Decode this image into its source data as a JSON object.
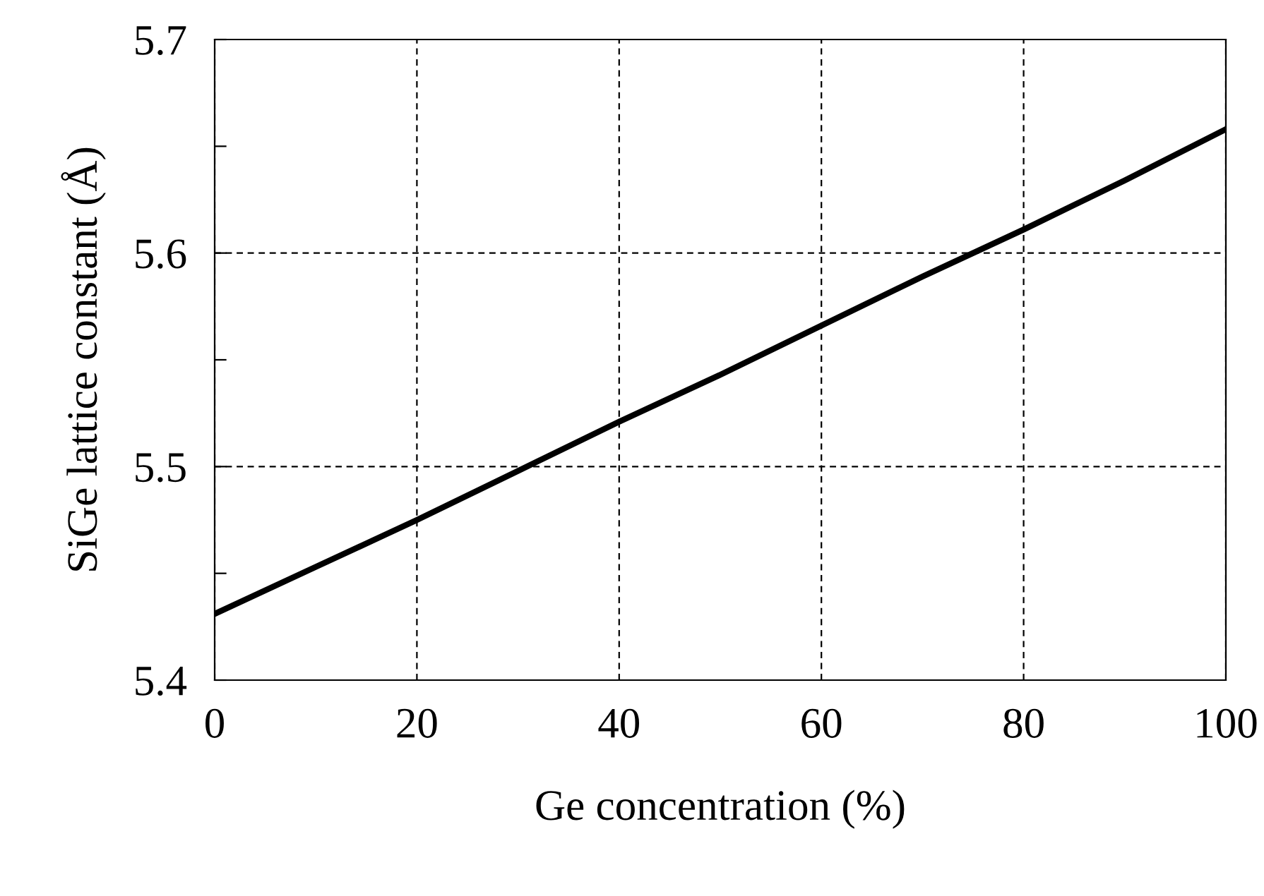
{
  "chart_data": {
    "type": "line",
    "xlabel": "Ge concentration (%)",
    "ylabel": "SiGe lattice constant (Å)",
    "x": [
      0,
      10,
      20,
      30,
      40,
      50,
      60,
      70,
      80,
      90,
      100
    ],
    "series": [
      {
        "color": "#000000",
        "values": [
          5.431,
          5.453,
          5.475,
          5.498,
          5.521,
          5.543,
          5.566,
          5.589,
          5.611,
          5.634,
          5.658
        ]
      }
    ],
    "xlim": [
      0,
      100
    ],
    "xticks": [
      0,
      20,
      40,
      60,
      80,
      100
    ],
    "ylim": [
      5.4,
      5.7
    ],
    "yticks": [
      5.4,
      {
        "value": 5.45,
        "label": null
      },
      5.5,
      {
        "value": 5.55,
        "label": null
      },
      5.6,
      {
        "value": 5.65,
        "label": null
      },
      5.7
    ],
    "grid": true,
    "marker": "none",
    "line_style": "solid"
  }
}
